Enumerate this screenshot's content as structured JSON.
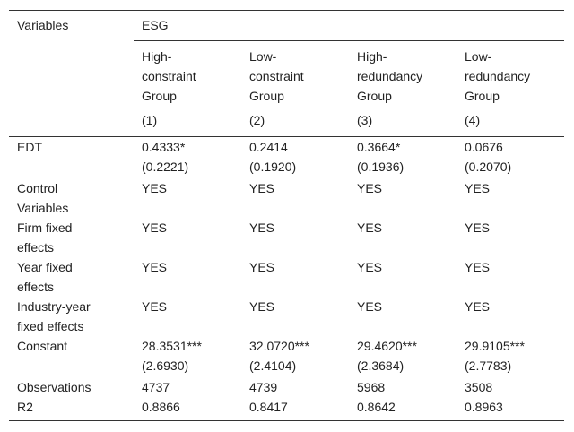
{
  "header": {
    "variables_label": "Variables",
    "esg_label": "ESG",
    "groups": [
      [
        "High-",
        "constraint",
        "Group"
      ],
      [
        "Low-",
        "constraint",
        "Group"
      ],
      [
        "High-",
        "redundancy",
        "Group"
      ],
      [
        "Low-",
        "redundancy",
        "Group"
      ]
    ],
    "col_numbers": [
      "(1)",
      "(2)",
      "(3)",
      "(4)"
    ]
  },
  "rows": [
    {
      "label": [
        "EDT"
      ],
      "values": [
        "0.4333*",
        "0.2414",
        "0.3664*",
        "0.0676"
      ],
      "se": [
        "(0.2221)",
        "(0.1920)",
        "(0.1936)",
        "(0.2070)"
      ]
    },
    {
      "label": [
        "Control",
        "Variables"
      ],
      "values": [
        "YES",
        "YES",
        "YES",
        "YES"
      ]
    },
    {
      "label": [
        "Firm fixed",
        "effects"
      ],
      "values": [
        "YES",
        "YES",
        "YES",
        "YES"
      ]
    },
    {
      "label": [
        "Year fixed",
        "effects"
      ],
      "values": [
        "YES",
        "YES",
        "YES",
        "YES"
      ]
    },
    {
      "label": [
        "Industry-year",
        "fixed effects"
      ],
      "values": [
        "YES",
        "YES",
        "YES",
        "YES"
      ]
    },
    {
      "label": [
        "Constant"
      ],
      "values": [
        "28.3531***",
        "32.0720***",
        "29.4620***",
        "29.9105***"
      ],
      "se": [
        "(2.6930)",
        "(2.4104)",
        "(2.3684)",
        "(2.7783)"
      ]
    },
    {
      "label": [
        "Observations"
      ],
      "values": [
        "4737",
        "4739",
        "5968",
        "3508"
      ]
    },
    {
      "label": [
        "R2"
      ],
      "values": [
        "0.8866",
        "0.8417",
        "0.8642",
        "0.8963"
      ]
    }
  ]
}
